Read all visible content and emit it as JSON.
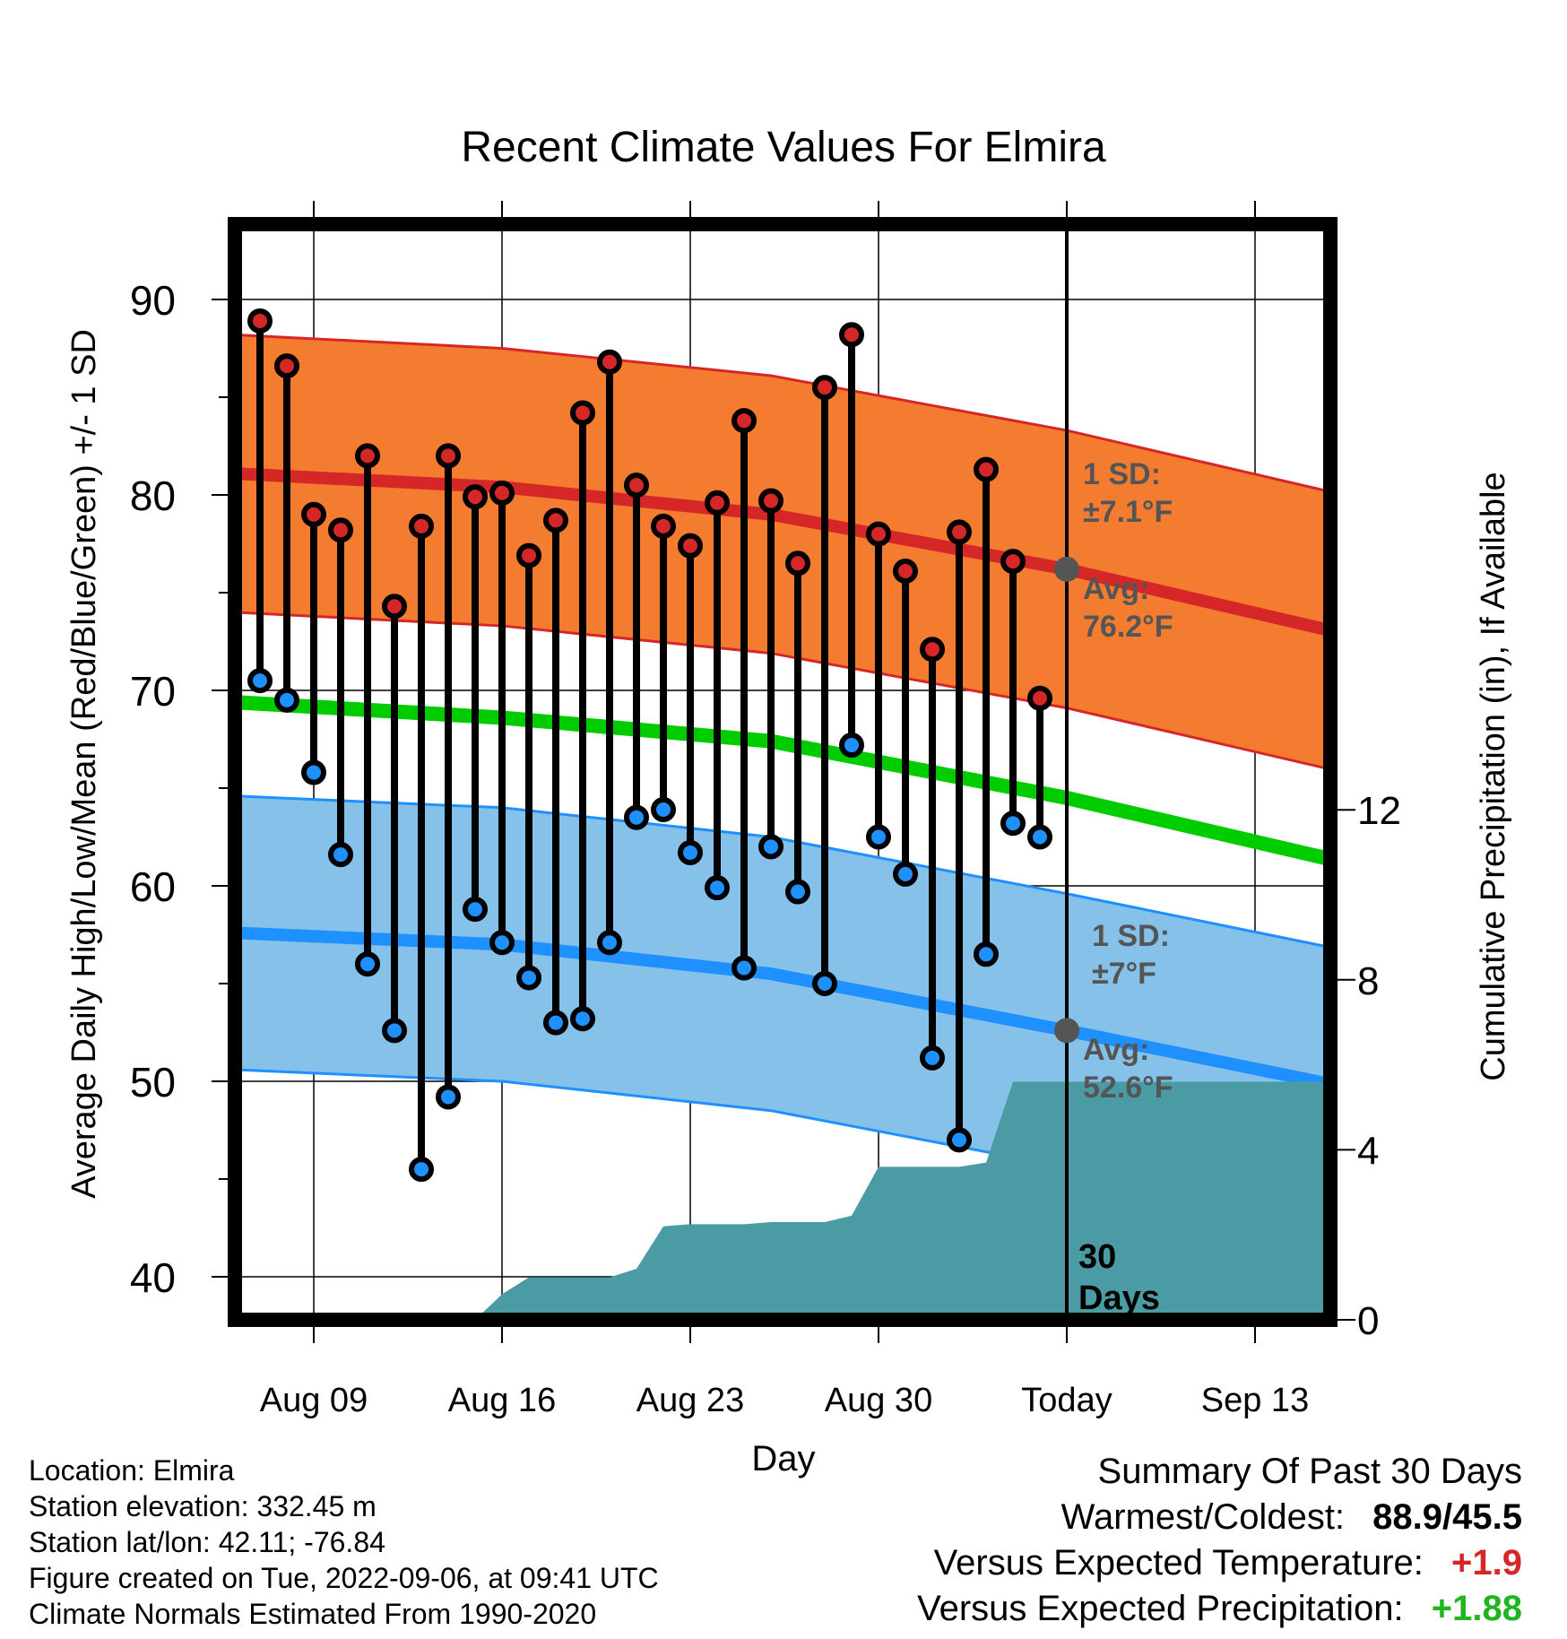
{
  "chart_data": {
    "type": "line",
    "title": "Recent Climate Values For Elmira",
    "xlabel": "Day",
    "ylabel": "Average Daily High/Low/Mean (Red/Blue/Green) +/- 1 SD",
    "y2label": "Cumulative Precipitation (in), If Available",
    "x_ticks": [
      "Aug 09",
      "Aug 16",
      "Aug 23",
      "Aug 30",
      "Today",
      "Sep 13"
    ],
    "y_ticks": [
      "40",
      "50",
      "60",
      "70",
      "80",
      "90"
    ],
    "y2_ticks": [
      "0",
      "4",
      "8",
      "12"
    ],
    "ylim": [
      38,
      93
    ],
    "y2lim": [
      0,
      21.2
    ],
    "grid": true,
    "colors": {
      "high": "#d62728",
      "low": "#1e90ff",
      "mean": "#00cc00",
      "high_band": "#f47c30",
      "low_band": "#85c1e9",
      "precip": "#4a9ba4"
    },
    "normal_high": {
      "avg": [
        {
          "x": "Aug 06",
          "y": 81.1
        },
        {
          "x": "Aug 16",
          "y": 80.4
        },
        {
          "x": "Aug 26",
          "y": 79.0
        },
        {
          "x": "Sep 06",
          "y": 76.2
        },
        {
          "x": "Sep 16",
          "y": 73.0
        }
      ],
      "sd": 7.1
    },
    "normal_low": {
      "avg": [
        {
          "x": "Aug 06",
          "y": 57.6
        },
        {
          "x": "Aug 16",
          "y": 57.0
        },
        {
          "x": "Aug 26",
          "y": 55.5
        },
        {
          "x": "Sep 06",
          "y": 52.6
        },
        {
          "x": "Sep 16",
          "y": 49.8
        }
      ],
      "sd": 7
    },
    "normal_mean": [
      {
        "x": "Aug 06",
        "y": 69.4
      },
      {
        "x": "Aug 16",
        "y": 68.6
      },
      {
        "x": "Aug 26",
        "y": 67.4
      },
      {
        "x": "Sep 06",
        "y": 64.5
      },
      {
        "x": "Sep 16",
        "y": 61.3
      }
    ],
    "daily": [
      {
        "date": "Aug 07",
        "high": 88.9,
        "low": 70.5
      },
      {
        "date": "Aug 08",
        "high": 86.6,
        "low": 69.5
      },
      {
        "date": "Aug 09",
        "high": 79.0,
        "low": 65.8
      },
      {
        "date": "Aug 10",
        "high": 78.2,
        "low": 61.6
      },
      {
        "date": "Aug 11",
        "high": 82.0,
        "low": 56.0
      },
      {
        "date": "Aug 12",
        "high": 74.3,
        "low": 52.6
      },
      {
        "date": "Aug 13",
        "high": 78.4,
        "low": 45.5
      },
      {
        "date": "Aug 14",
        "high": 82.0,
        "low": 49.2
      },
      {
        "date": "Aug 15",
        "high": 79.9,
        "low": 58.8
      },
      {
        "date": "Aug 16",
        "high": 80.1,
        "low": 57.1
      },
      {
        "date": "Aug 17",
        "high": 76.9,
        "low": 55.3
      },
      {
        "date": "Aug 18",
        "high": 78.7,
        "low": 53.0
      },
      {
        "date": "Aug 19",
        "high": 84.2,
        "low": 53.2
      },
      {
        "date": "Aug 20",
        "high": 86.8,
        "low": 57.1
      },
      {
        "date": "Aug 21",
        "high": 80.5,
        "low": 63.5
      },
      {
        "date": "Aug 22",
        "high": 78.4,
        "low": 63.9
      },
      {
        "date": "Aug 23",
        "high": 77.4,
        "low": 61.7
      },
      {
        "date": "Aug 24",
        "high": 79.6,
        "low": 59.9
      },
      {
        "date": "Aug 25",
        "high": 83.8,
        "low": 55.8
      },
      {
        "date": "Aug 26",
        "high": 79.7,
        "low": 62.0
      },
      {
        "date": "Aug 27",
        "high": 76.5,
        "low": 59.7
      },
      {
        "date": "Aug 28",
        "high": 85.5,
        "low": 55.0
      },
      {
        "date": "Aug 29",
        "high": 88.2,
        "low": 67.2
      },
      {
        "date": "Aug 30",
        "high": 78.0,
        "low": 62.5
      },
      {
        "date": "Aug 31",
        "high": 76.1,
        "low": 60.6
      },
      {
        "date": "Sep 01",
        "high": 72.1,
        "low": 51.2
      },
      {
        "date": "Sep 02",
        "high": 78.1,
        "low": 47.0
      },
      {
        "date": "Sep 03",
        "high": 81.3,
        "low": 56.5
      },
      {
        "date": "Sep 04",
        "high": 76.6,
        "low": 63.2
      },
      {
        "date": "Sep 05",
        "high": 69.6,
        "low": 62.5
      }
    ],
    "precip": [
      {
        "x": "Aug 13",
        "y": 0.0
      },
      {
        "x": "Aug 14",
        "y": 0.0
      },
      {
        "x": "Aug 15",
        "y": 0.0
      },
      {
        "x": "Aug 16",
        "y": 0.6
      },
      {
        "x": "Aug 17",
        "y": 1.0
      },
      {
        "x": "Aug 18",
        "y": 1.0
      },
      {
        "x": "Aug 19",
        "y": 1.0
      },
      {
        "x": "Aug 20",
        "y": 1.0
      },
      {
        "x": "Aug 21",
        "y": 1.2
      },
      {
        "x": "Aug 22",
        "y": 2.2
      },
      {
        "x": "Aug 23",
        "y": 2.25
      },
      {
        "x": "Aug 24",
        "y": 2.25
      },
      {
        "x": "Aug 25",
        "y": 2.25
      },
      {
        "x": "Aug 26",
        "y": 2.3
      },
      {
        "x": "Aug 27",
        "y": 2.3
      },
      {
        "x": "Aug 28",
        "y": 2.3
      },
      {
        "x": "Aug 29",
        "y": 2.45
      },
      {
        "x": "Aug 30",
        "y": 3.6
      },
      {
        "x": "Aug 31",
        "y": 3.6
      },
      {
        "x": "Sep 01",
        "y": 3.6
      },
      {
        "x": "Sep 02",
        "y": 3.6
      },
      {
        "x": "Sep 03",
        "y": 3.7
      },
      {
        "x": "Sep 04",
        "y": 5.6
      },
      {
        "x": "Sep 16",
        "y": 5.6
      }
    ],
    "annotations": {
      "high_sd": "1 SD:",
      "high_sd_val": "±7.1°F",
      "high_avg": "Avg:",
      "high_avg_val": "76.2°F",
      "low_sd": "1 SD:",
      "low_sd_val": "±7°F",
      "low_avg": "Avg:",
      "low_avg_val": "52.6°F",
      "days_num": "30",
      "days_word": "Days"
    }
  },
  "footer": {
    "location": "Location: Elmira",
    "elevation": "Station elevation: 332.45 m",
    "latlon": "Station lat/lon: 42.11; -76.84",
    "created": "Figure created on Tue, 2022-09-06, at 09:41 UTC",
    "normals": "Climate Normals Estimated From 1990-2020"
  },
  "summary": {
    "title": "Summary Of Past 30 Days",
    "warm_cold_label": "Warmest/Coldest:",
    "warm_cold_value": "88.9/45.5",
    "temp_label": "Versus Expected Temperature:",
    "temp_value": "+1.9",
    "precip_label": "Versus Expected Precipitation:",
    "precip_value": "+1.88"
  }
}
